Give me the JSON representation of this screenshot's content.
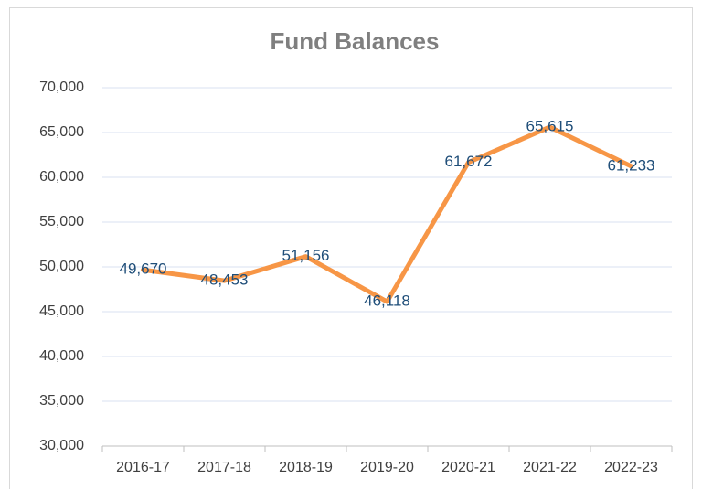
{
  "chart_data": {
    "type": "line",
    "title": "Fund Balances",
    "categories": [
      "2016-17",
      "2017-18",
      "2018-19",
      "2019-20",
      "2020-21",
      "2021-22",
      "2022-23"
    ],
    "values": [
      49670,
      48453,
      51156,
      46118,
      61672,
      65615,
      61233
    ],
    "value_labels": [
      "49,670",
      "48,453",
      "51,156",
      "46,118",
      "61,672",
      "65,615",
      "61,233"
    ],
    "color": "#f79646",
    "ylim": [
      30000,
      70000
    ],
    "yticks": [
      {
        "value": 30000,
        "label": "30,000"
      },
      {
        "value": 35000,
        "label": "35,000"
      },
      {
        "value": 40000,
        "label": "40,000"
      },
      {
        "value": 45000,
        "label": "45,000"
      },
      {
        "value": 50000,
        "label": "50,000"
      },
      {
        "value": 55000,
        "label": "55,000"
      },
      {
        "value": 60000,
        "label": "60,000"
      },
      {
        "value": 65000,
        "label": "65,000"
      },
      {
        "value": 70000,
        "label": "70,000"
      }
    ],
    "grid": true
  }
}
